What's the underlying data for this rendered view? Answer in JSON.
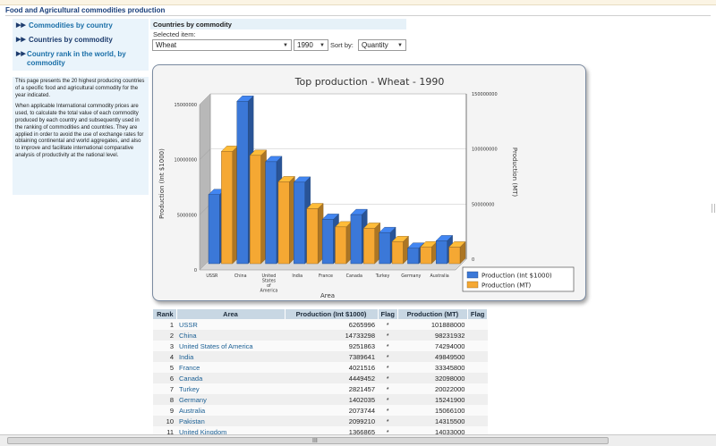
{
  "page_title": "Food and Agricultural commodities production",
  "nav": [
    {
      "label": "Commodities by country",
      "active": false
    },
    {
      "label": "Countries by commodity",
      "active": true
    },
    {
      "label": "Country rank in the world, by commodity",
      "active": false
    }
  ],
  "info": {
    "p1": "This page presents the 20 highest producing countries of a specific food and agricultural commodity for the year indicated.",
    "p2": "When applicable International commodity prices are used, to calculate the total value of each commodity produced by each country and subsequently used in the ranking of commodities and countries. They are applied in order to avoid the use of exchange rates for obtaining continental and world aggregates, and also to improve and facilitate international comparative analysis of productivity at the national level."
  },
  "form": {
    "section_title": "Countries by commodity",
    "selected_label": "Selected item:",
    "commodity": "Wheat",
    "year": "1990",
    "sort_label": "Sort by:",
    "sort_value": "Quantity"
  },
  "chart_data": {
    "type": "bar",
    "title": "Top production - Wheat - 1990",
    "xlabel": "Area",
    "ylabel_left": "Production (Int $1000)",
    "ylabel_right": "Production (MT)",
    "categories": [
      "USSR",
      "China",
      "United States of America",
      "India",
      "France",
      "Canada",
      "Turkey",
      "Germany",
      "Australia"
    ],
    "category_labels": [
      [
        "USSR"
      ],
      [
        "China"
      ],
      [
        "United",
        "States",
        "of",
        "America"
      ],
      [
        "India"
      ],
      [
        "France"
      ],
      [
        "Canada"
      ],
      [
        "Turkey"
      ],
      [
        "Germany"
      ],
      [
        "Australia"
      ]
    ],
    "series": [
      {
        "name": "Production (Int $1000)",
        "axis": "left",
        "color": "#3b78d8",
        "values": [
          6265996,
          14733298,
          9251863,
          7389641,
          4021516,
          4449452,
          2821457,
          1402035,
          2073744
        ]
      },
      {
        "name": "Production (MT)",
        "axis": "right",
        "color": "#f5a833",
        "values": [
          101888000,
          98231932,
          74294000,
          49849500,
          33345800,
          32098000,
          20022000,
          15241900,
          15066100
        ]
      }
    ],
    "ylim_left": [
      0,
      15000000
    ],
    "yticks_left": [
      "0",
      "5000000",
      "10000000",
      "15000000"
    ],
    "ylim_right": [
      0,
      150000000
    ],
    "yticks_right": [
      "0",
      "50000000",
      "100000000",
      "150000000"
    ],
    "legend_position": "bottom-right",
    "grid": true
  },
  "table": {
    "headers": [
      "Rank",
      "Area",
      "Production (Int $1000)",
      "Flag",
      "Production (MT)",
      "Flag"
    ],
    "rows": [
      {
        "rank": "1",
        "area": "USSR",
        "intd": "6265996",
        "flag": "*",
        "mt": "101888000"
      },
      {
        "rank": "2",
        "area": "China",
        "intd": "14733298",
        "flag": "*",
        "mt": "98231932"
      },
      {
        "rank": "3",
        "area": "United States of America",
        "intd": "9251863",
        "flag": "*",
        "mt": "74294000"
      },
      {
        "rank": "4",
        "area": "India",
        "intd": "7389641",
        "flag": "*",
        "mt": "49849500"
      },
      {
        "rank": "5",
        "area": "France",
        "intd": "4021516",
        "flag": "*",
        "mt": "33345800"
      },
      {
        "rank": "6",
        "area": "Canada",
        "intd": "4449452",
        "flag": "*",
        "mt": "32098000"
      },
      {
        "rank": "7",
        "area": "Turkey",
        "intd": "2821457",
        "flag": "*",
        "mt": "20022000"
      },
      {
        "rank": "8",
        "area": "Germany",
        "intd": "1402035",
        "flag": "*",
        "mt": "15241900"
      },
      {
        "rank": "9",
        "area": "Australia",
        "intd": "2073744",
        "flag": "*",
        "mt": "15066100"
      },
      {
        "rank": "10",
        "area": "Pakistan",
        "intd": "2099210",
        "flag": "*",
        "mt": "14315500"
      },
      {
        "rank": "11",
        "area": "United Kingdom",
        "intd": "1366865",
        "flag": "*",
        "mt": "14033000"
      }
    ]
  },
  "scrollbar": {
    "grip": "III"
  }
}
